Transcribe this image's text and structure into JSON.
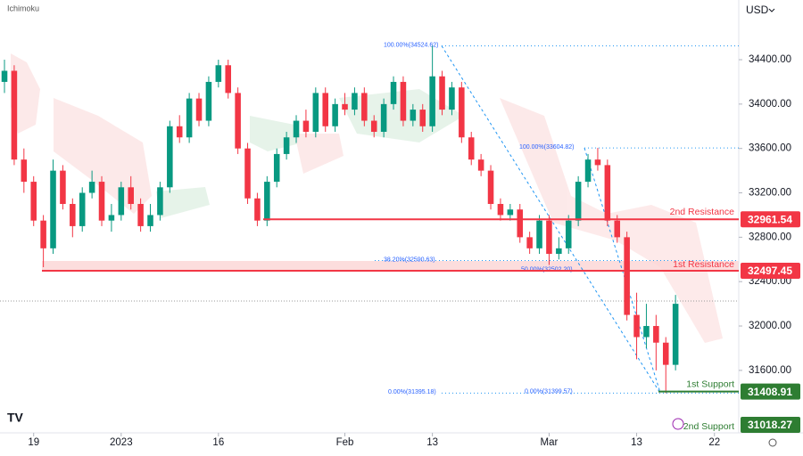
{
  "header": {
    "indicator": "Ichimoku",
    "currency": "USD"
  },
  "chart_data": {
    "type": "candlestick",
    "categories": [
      null,
      null,
      null,
      null,
      null,
      null,
      null,
      null,
      null,
      null,
      null,
      null,
      null,
      null,
      null,
      null,
      null,
      null,
      null,
      null,
      null,
      null,
      null,
      null,
      null,
      null,
      null,
      null,
      null,
      null,
      null,
      null,
      null,
      null,
      null,
      null,
      null,
      null,
      null,
      null,
      null,
      null,
      null,
      null,
      null,
      null,
      null,
      null,
      null,
      null,
      null,
      null,
      null,
      null,
      null,
      null,
      null,
      null,
      null,
      null,
      null,
      null,
      null,
      null,
      null,
      null,
      null,
      null,
      null,
      null
    ],
    "ohlc": [
      [
        34200,
        34400,
        34100,
        34300
      ],
      [
        34300,
        34350,
        33450,
        33500
      ],
      [
        33500,
        33600,
        33200,
        33300
      ],
      [
        33300,
        33350,
        32900,
        32950
      ],
      [
        32950,
        33000,
        32530,
        32700
      ],
      [
        32700,
        33500,
        32650,
        33400
      ],
      [
        33400,
        33450,
        33050,
        33100
      ],
      [
        33100,
        33150,
        32800,
        32900
      ],
      [
        32900,
        33250,
        32850,
        33200
      ],
      [
        33200,
        33400,
        33150,
        33300
      ],
      [
        33300,
        33350,
        32900,
        32950
      ],
      [
        32950,
        33100,
        32850,
        33000
      ],
      [
        33000,
        33300,
        32950,
        33250
      ],
      [
        33250,
        33350,
        33050,
        33100
      ],
      [
        33100,
        33150,
        32850,
        32900
      ],
      [
        32900,
        33100,
        32850,
        33000
      ],
      [
        33000,
        33300,
        32950,
        33250
      ],
      [
        33250,
        33850,
        33200,
        33800
      ],
      [
        33800,
        33900,
        33650,
        33700
      ],
      [
        33700,
        34100,
        33650,
        34050
      ],
      [
        34050,
        34100,
        33800,
        33850
      ],
      [
        33850,
        34250,
        33800,
        34200
      ],
      [
        34200,
        34400,
        34150,
        34350
      ],
      [
        34350,
        34400,
        34050,
        34100
      ],
      [
        34100,
        34150,
        33550,
        33600
      ],
      [
        33600,
        33650,
        33100,
        33150
      ],
      [
        33150,
        33200,
        32900,
        32950
      ],
      [
        32950,
        33350,
        32900,
        33300
      ],
      [
        33300,
        33600,
        33250,
        33550
      ],
      [
        33550,
        33750,
        33500,
        33700
      ],
      [
        33700,
        33900,
        33650,
        33850
      ],
      [
        33850,
        33950,
        33700,
        33750
      ],
      [
        33750,
        34150,
        33700,
        34100
      ],
      [
        34100,
        34150,
        33750,
        33800
      ],
      [
        33800,
        34050,
        33750,
        34000
      ],
      [
        34000,
        34100,
        33900,
        33950
      ],
      [
        33950,
        34150,
        33900,
        34100
      ],
      [
        34100,
        34150,
        33800,
        33850
      ],
      [
        33850,
        33900,
        33700,
        33750
      ],
      [
        33750,
        34050,
        33700,
        34000
      ],
      [
        34000,
        34250,
        33950,
        34200
      ],
      [
        34200,
        34250,
        33800,
        33850
      ],
      [
        33850,
        34000,
        33800,
        33950
      ],
      [
        33950,
        34000,
        33750,
        33800
      ],
      [
        33800,
        34525,
        33750,
        34250
      ],
      [
        34250,
        34300,
        33900,
        33950
      ],
      [
        33950,
        34200,
        33900,
        34150
      ],
      [
        34150,
        34200,
        33650,
        33700
      ],
      [
        33700,
        33750,
        33450,
        33500
      ],
      [
        33500,
        33550,
        33350,
        33400
      ],
      [
        33400,
        33450,
        33050,
        33100
      ],
      [
        33100,
        33150,
        32950,
        33000
      ],
      [
        33000,
        33100,
        32950,
        33050
      ],
      [
        33050,
        33100,
        32750,
        32800
      ],
      [
        32800,
        32850,
        32650,
        32700
      ],
      [
        32700,
        33000,
        32650,
        32950
      ],
      [
        32950,
        33000,
        32550,
        32650
      ],
      [
        32650,
        32800,
        32600,
        32700
      ],
      [
        32700,
        33000,
        32650,
        32950
      ],
      [
        32950,
        33350,
        32900,
        33300
      ],
      [
        33300,
        33550,
        33250,
        33500
      ],
      [
        33500,
        33605,
        33400,
        33450
      ],
      [
        33450,
        33500,
        32900,
        32950
      ],
      [
        32950,
        33000,
        32750,
        32800
      ],
      [
        32800,
        32850,
        32050,
        32100
      ],
      [
        32100,
        32300,
        31700,
        31900
      ],
      [
        31900,
        32200,
        31800,
        32000
      ],
      [
        32000,
        32100,
        31600,
        31850
      ],
      [
        31850,
        31900,
        31395,
        31650
      ],
      [
        31650,
        32280,
        31600,
        32200
      ]
    ],
    "up_color": "#089981",
    "down_color": "#f23645",
    "ylim": [
      31005,
      34938
    ],
    "yticks": [
      {
        "value": 31600,
        "label": "31600.00"
      },
      {
        "value": 32000,
        "label": "32000.00"
      },
      {
        "value": 32400,
        "label": "32400.00"
      },
      {
        "value": 32800,
        "label": "32800.00"
      },
      {
        "value": 33200,
        "label": "33200.00"
      },
      {
        "value": 33600,
        "label": "33600.00"
      },
      {
        "value": 34000,
        "label": "34000.00"
      },
      {
        "value": 34400,
        "label": "34400.00"
      }
    ],
    "xlim": [
      -0.46,
      75.5
    ],
    "xticks": [
      {
        "value": 3,
        "label": "19"
      },
      {
        "value": 12,
        "label": "2023"
      },
      {
        "value": 22,
        "label": "16"
      },
      {
        "value": 35,
        "label": "Feb"
      },
      {
        "value": 44,
        "label": "13"
      },
      {
        "value": 56,
        "label": "Mar"
      },
      {
        "value": 65,
        "label": "13"
      },
      {
        "value": 73,
        "label": "22"
      }
    ],
    "levels": [
      {
        "name": "2nd Resistance",
        "value": 32961.54,
        "color": "#f23645"
      },
      {
        "name": "1st Resistance",
        "value": 32497.45,
        "color": "#f23645"
      },
      {
        "name": "1st Support",
        "value": 31408.91,
        "color": "#2e7d32"
      },
      {
        "name": "2nd Support",
        "value": 31018.27,
        "color": "#2e7d32"
      }
    ],
    "fibs": [
      {
        "value": 34524.62,
        "label": "100.00%(34524.62)"
      },
      {
        "value": 33604.82,
        "label": "100.00%(33604.82)"
      },
      {
        "value": 32590.63,
        "label": "38.20%(32590.63)"
      },
      {
        "value": 32502.2,
        "label": "50.00%(32502.20)"
      },
      {
        "value": 31395.18,
        "label": "0.00%(31395.18)"
      },
      {
        "value": 31399.57,
        "label": "0.00%(31399.57)"
      }
    ]
  }
}
